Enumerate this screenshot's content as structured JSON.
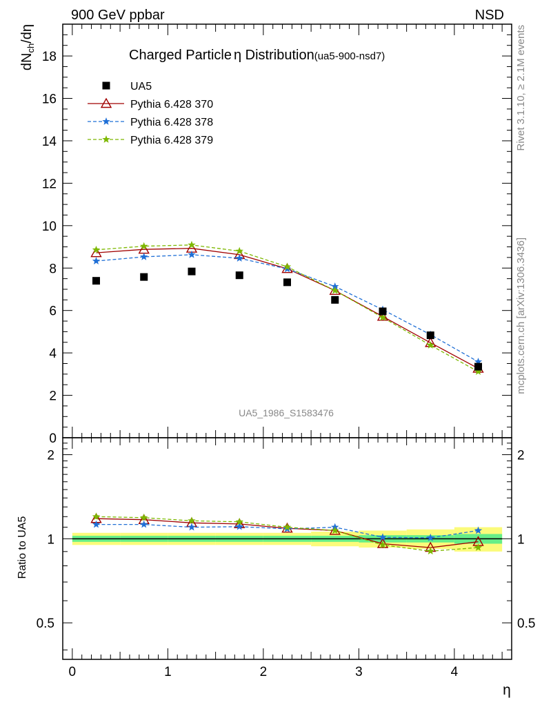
{
  "header": {
    "left": "900 GeV ppbar",
    "right": "NSD"
  },
  "side": {
    "rivet": "Rivet 3.1.10, ≥ 2.1M events",
    "mcplots": "mcplots.cern.ch [arXiv:1306.3436]"
  },
  "chart_data": [
    {
      "type": "scatter",
      "title_main": "Charged Particle",
      "title_sym": "η",
      "title_rest": " Distribution",
      "title_tag": "(ua5-900-nsd7)",
      "ylabel": "dN",
      "ylabel_sub": "ch",
      "ylabel_tail": "/dη",
      "analysis_id": "UA5_1986_S1583476",
      "xlim": [
        -0.1,
        4.6
      ],
      "ylim": [
        0,
        19.5
      ],
      "yticks": [
        0,
        2,
        4,
        6,
        8,
        10,
        12,
        14,
        16,
        18
      ],
      "x": [
        0.25,
        0.75,
        1.25,
        1.75,
        2.25,
        2.75,
        3.25,
        3.75,
        4.25
      ],
      "series": [
        {
          "name": "UA5",
          "color": "#000000",
          "marker": "square",
          "line": "none",
          "values": [
            7.4,
            7.58,
            7.84,
            7.66,
            7.33,
            6.5,
            5.96,
            4.83,
            3.35
          ]
        },
        {
          "name": "Pythia 6.428 370",
          "color": "#a00000",
          "marker": "triangle-open",
          "line": "solid",
          "values": [
            8.72,
            8.88,
            8.93,
            8.63,
            7.97,
            6.94,
            5.72,
            4.48,
            3.27
          ]
        },
        {
          "name": "Pythia 6.428 378",
          "color": "#1f6fd6",
          "marker": "star",
          "line": "dashed",
          "values": [
            8.33,
            8.53,
            8.63,
            8.46,
            7.96,
            7.13,
            6.04,
            4.86,
            3.58
          ]
        },
        {
          "name": "Pythia 6.428 379",
          "color": "#7db800",
          "marker": "star",
          "line": "dashed",
          "values": [
            8.86,
            9.03,
            9.09,
            8.8,
            8.06,
            6.94,
            5.67,
            4.36,
            3.12
          ]
        }
      ]
    },
    {
      "type": "line",
      "ylabel": "Ratio to UA5",
      "xlabel": "η",
      "ylim": [
        0.37,
        2.3
      ],
      "yscale": "log",
      "yticks_labeled": [
        0.5,
        1,
        2
      ],
      "xticks": [
        0,
        1,
        2,
        3,
        4
      ],
      "x": [
        0.25,
        0.75,
        1.25,
        1.75,
        2.25,
        2.75,
        3.25,
        3.75,
        4.25
      ],
      "reference_band": {
        "edges": [
          0,
          0.5,
          1,
          1.5,
          2,
          2.5,
          3,
          3.5,
          4,
          4.5
        ],
        "inner": [
          0.025,
          0.025,
          0.025,
          0.025,
          0.025,
          0.025,
          0.03,
          0.03,
          0.04
        ],
        "outer": [
          0.05,
          0.05,
          0.05,
          0.05,
          0.05,
          0.06,
          0.07,
          0.08,
          0.1
        ],
        "inner_color": "#66ee88",
        "outer_color": "#fbfb7a"
      },
      "series": [
        {
          "name": "Pythia 6.428 370",
          "color": "#a00000",
          "marker": "triangle-open",
          "line": "solid",
          "values": [
            1.18,
            1.17,
            1.14,
            1.13,
            1.09,
            1.07,
            0.96,
            0.93,
            0.976
          ]
        },
        {
          "name": "Pythia 6.428 378",
          "color": "#1f6fd6",
          "marker": "star",
          "line": "dashed",
          "values": [
            1.125,
            1.125,
            1.1,
            1.105,
            1.085,
            1.1,
            1.012,
            1.008,
            1.07
          ]
        },
        {
          "name": "Pythia 6.428 379",
          "color": "#7db800",
          "marker": "star",
          "line": "dashed",
          "values": [
            1.2,
            1.19,
            1.16,
            1.15,
            1.1,
            1.07,
            0.95,
            0.903,
            0.93
          ]
        }
      ]
    }
  ]
}
